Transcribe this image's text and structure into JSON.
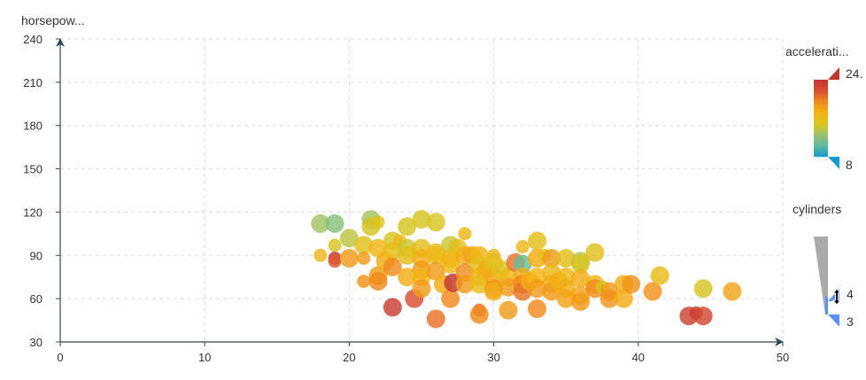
{
  "chart_data": {
    "type": "scatter",
    "title": "",
    "xlabel": "",
    "ylabel": "horsepow...",
    "xlim": [
      0,
      50
    ],
    "ylim": [
      30,
      240
    ],
    "x_ticks": [
      "0",
      "10",
      "20",
      "30",
      "40",
      "50"
    ],
    "y_ticks": [
      "30",
      "60",
      "90",
      "120",
      "150",
      "180",
      "210",
      "240"
    ],
    "grid": true,
    "grid_style": "dashed",
    "legend": "right",
    "color_encoding": {
      "dimension": "accelerati...",
      "min_label": "8",
      "max_label": "24.",
      "min": 8,
      "max": 24.8,
      "palette": [
        "#1a98d0",
        "#5fb9a0",
        "#9cc36a",
        "#dcc41c",
        "#f2b314",
        "#f08a1c",
        "#d94e33",
        "#c23531"
      ]
    },
    "size_encoding": {
      "dimension": "cylinders",
      "min_label": "3",
      "max_label": "4",
      "handle_label": "4"
    },
    "series": [
      {
        "points": [
          [
            18,
            112,
            13,
            4
          ],
          [
            19,
            112,
            12,
            4
          ],
          [
            18,
            90,
            17,
            3
          ],
          [
            19,
            97,
            15,
            3
          ],
          [
            19,
            88,
            24.5,
            3
          ],
          [
            19,
            86,
            22,
            3
          ],
          [
            20,
            102,
            14,
            4
          ],
          [
            20,
            88,
            19,
            4
          ],
          [
            21,
            97,
            16,
            4
          ],
          [
            21,
            88,
            19,
            3
          ],
          [
            21,
            72,
            19.5,
            3
          ],
          [
            21.5,
            115,
            13,
            4
          ],
          [
            21.5,
            110,
            15,
            4
          ],
          [
            22,
            113,
            15.5,
            3
          ],
          [
            22,
            95,
            17.5,
            4
          ],
          [
            22,
            76,
            19,
            4
          ],
          [
            22,
            72,
            20,
            4
          ],
          [
            22.5,
            86,
            18,
            4
          ],
          [
            23,
            100,
            15,
            4
          ],
          [
            23,
            93,
            16.5,
            4
          ],
          [
            23,
            82,
            20,
            4
          ],
          [
            23,
            54,
            24,
            4
          ],
          [
            23.5,
            100,
            17,
            3
          ],
          [
            24,
            110,
            15,
            4
          ],
          [
            24,
            95,
            14.5,
            4
          ],
          [
            24,
            90,
            16,
            4
          ],
          [
            24,
            75,
            18,
            4
          ],
          [
            24.5,
            60,
            22.5,
            4
          ],
          [
            25,
            115,
            15,
            4
          ],
          [
            25,
            95,
            16,
            4
          ],
          [
            25,
            88,
            18,
            4
          ],
          [
            25,
            80,
            19,
            4
          ],
          [
            25,
            75,
            17.5,
            4
          ],
          [
            25,
            67,
            19,
            4
          ],
          [
            26,
            113,
            15,
            4
          ],
          [
            26,
            92,
            16,
            4
          ],
          [
            26,
            90,
            17,
            4
          ],
          [
            26,
            79,
            19,
            4
          ],
          [
            26,
            46,
            21,
            4
          ],
          [
            26.5,
            70,
            18,
            4
          ],
          [
            27,
            97,
            14.5,
            4
          ],
          [
            27,
            88,
            17,
            4
          ],
          [
            27,
            84,
            17.5,
            4
          ],
          [
            27,
            60,
            20,
            4
          ],
          [
            27.2,
            71,
            24.8,
            4
          ],
          [
            27.5,
            95,
            16,
            4
          ],
          [
            28,
            105,
            17,
            3
          ],
          [
            28,
            90,
            18,
            4
          ],
          [
            28,
            78,
            20,
            4
          ],
          [
            28,
            70,
            19,
            4
          ],
          [
            28.5,
            90,
            18.5,
            4
          ],
          [
            29,
            90,
            17.5,
            4
          ],
          [
            29,
            83,
            16,
            4
          ],
          [
            29,
            75,
            17,
            4
          ],
          [
            29,
            70,
            16.5,
            4
          ],
          [
            29,
            52,
            21,
            3
          ],
          [
            29,
            49,
            20,
            4
          ],
          [
            29.5,
            80,
            18,
            4
          ],
          [
            30,
            90,
            17,
            3
          ],
          [
            30,
            85,
            16,
            4
          ],
          [
            30,
            75,
            18.5,
            4
          ],
          [
            30,
            67,
            19.5,
            4
          ],
          [
            30,
            65,
            18,
            4
          ],
          [
            30.5,
            80,
            15.5,
            4
          ],
          [
            31,
            75,
            17,
            4
          ],
          [
            31,
            68,
            19,
            4
          ],
          [
            31,
            52,
            19,
            4
          ],
          [
            31.5,
            85,
            21,
            4
          ],
          [
            32,
            96,
            17,
            3
          ],
          [
            32,
            84,
            11,
            4
          ],
          [
            32,
            75,
            18,
            4
          ],
          [
            32,
            70,
            20,
            4
          ],
          [
            32,
            65,
            21,
            4
          ],
          [
            32.5,
            72,
            18,
            4
          ],
          [
            33,
            100,
            16,
            4
          ],
          [
            33,
            88,
            18,
            4
          ],
          [
            33,
            75,
            17.5,
            4
          ],
          [
            33,
            67,
            19,
            4
          ],
          [
            33,
            53,
            20,
            4
          ],
          [
            33.5,
            90,
            16,
            3
          ],
          [
            34,
            88,
            19,
            4
          ],
          [
            34,
            78,
            17,
            4
          ],
          [
            34,
            70,
            18,
            4
          ],
          [
            34,
            65,
            19,
            4
          ],
          [
            34.5,
            72,
            18,
            4
          ],
          [
            35,
            88,
            16,
            4
          ],
          [
            35,
            75,
            17,
            4
          ],
          [
            35,
            67,
            18,
            4
          ],
          [
            35,
            60,
            18.5,
            4
          ],
          [
            36,
            86,
            14,
            4
          ],
          [
            36,
            84,
            15,
            4
          ],
          [
            36,
            74,
            18,
            4
          ],
          [
            36,
            62,
            18.5,
            4
          ],
          [
            36,
            58,
            19,
            4
          ],
          [
            37,
            92,
            16,
            4
          ],
          [
            37,
            70,
            17,
            4
          ],
          [
            37,
            67,
            20,
            4
          ],
          [
            37.5,
            68,
            15,
            3
          ],
          [
            38,
            65,
            19,
            4
          ],
          [
            38,
            60,
            19.5,
            4
          ],
          [
            39,
            70,
            18,
            4
          ],
          [
            39,
            60,
            18,
            4
          ],
          [
            39.5,
            70,
            19.5,
            4
          ],
          [
            41,
            65,
            19.5,
            4
          ],
          [
            41.5,
            76,
            16.5,
            4
          ],
          [
            43.5,
            48,
            23.5,
            4
          ],
          [
            44,
            50,
            24,
            3
          ],
          [
            44.5,
            48,
            23,
            4
          ],
          [
            44.5,
            67,
            15,
            4
          ],
          [
            46.5,
            65,
            18.5,
            4
          ]
        ]
      }
    ]
  }
}
